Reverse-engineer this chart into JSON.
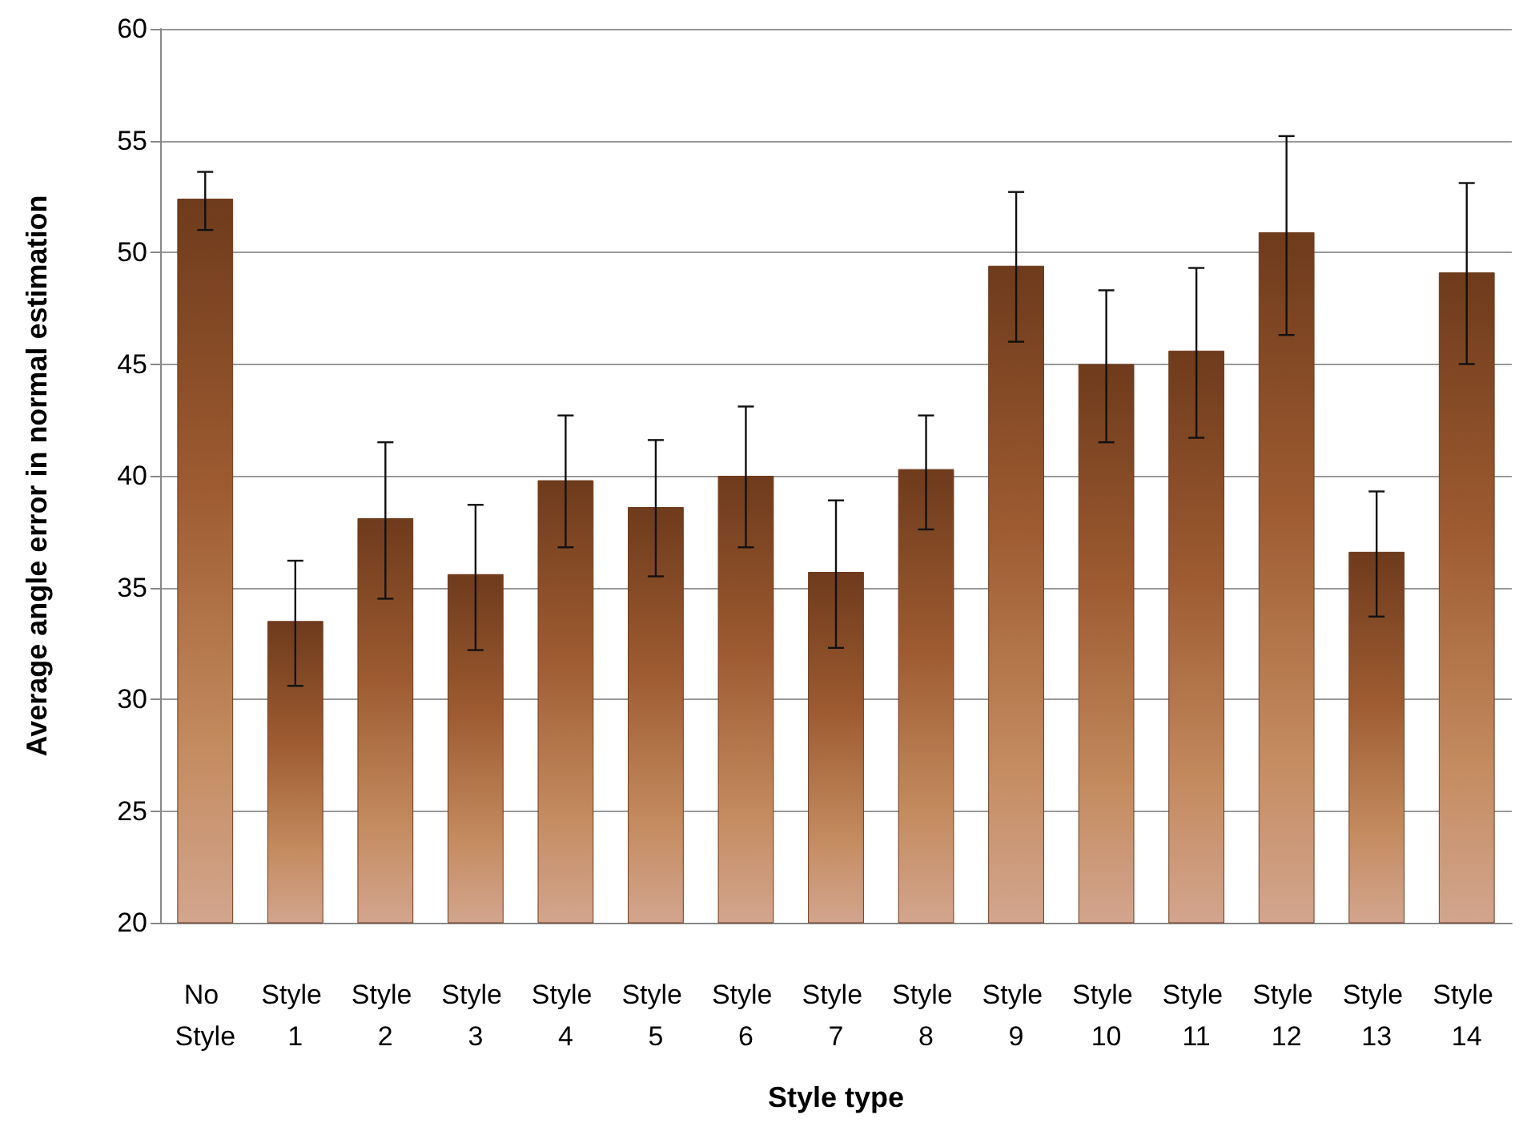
{
  "chart_data": {
    "type": "bar",
    "xlabel": "Style type",
    "ylabel": "Average angle error in normal estimation",
    "categories": [
      "No Style",
      "Style 1",
      "Style 2",
      "Style 3",
      "Style 4",
      "Style 5",
      "Style 6",
      "Style 7",
      "Style 8",
      "Style 9",
      "Style 10",
      "Style 11",
      "Style 12",
      "Style 13",
      "Style 14"
    ],
    "values": [
      52.4,
      33.5,
      38.1,
      35.6,
      39.8,
      38.6,
      40.0,
      35.7,
      40.3,
      49.4,
      45.0,
      45.6,
      50.9,
      36.6,
      49.1
    ],
    "errors": [
      [
        51.0,
        53.6
      ],
      [
        30.6,
        36.2
      ],
      [
        34.5,
        41.5
      ],
      [
        32.2,
        38.7
      ],
      [
        36.8,
        42.7
      ],
      [
        35.5,
        41.6
      ],
      [
        36.8,
        43.1
      ],
      [
        32.3,
        38.9
      ],
      [
        37.6,
        42.7
      ],
      [
        46.0,
        52.7
      ],
      [
        41.5,
        48.3
      ],
      [
        41.7,
        49.3
      ],
      [
        46.3,
        55.2
      ],
      [
        33.7,
        39.3
      ],
      [
        45.0,
        53.1
      ]
    ],
    "color": "#6e3b1c",
    "ylim": [
      20,
      60
    ],
    "yticks": [
      20,
      25,
      30,
      35,
      40,
      45,
      50,
      55,
      60
    ],
    "grid": "y"
  }
}
